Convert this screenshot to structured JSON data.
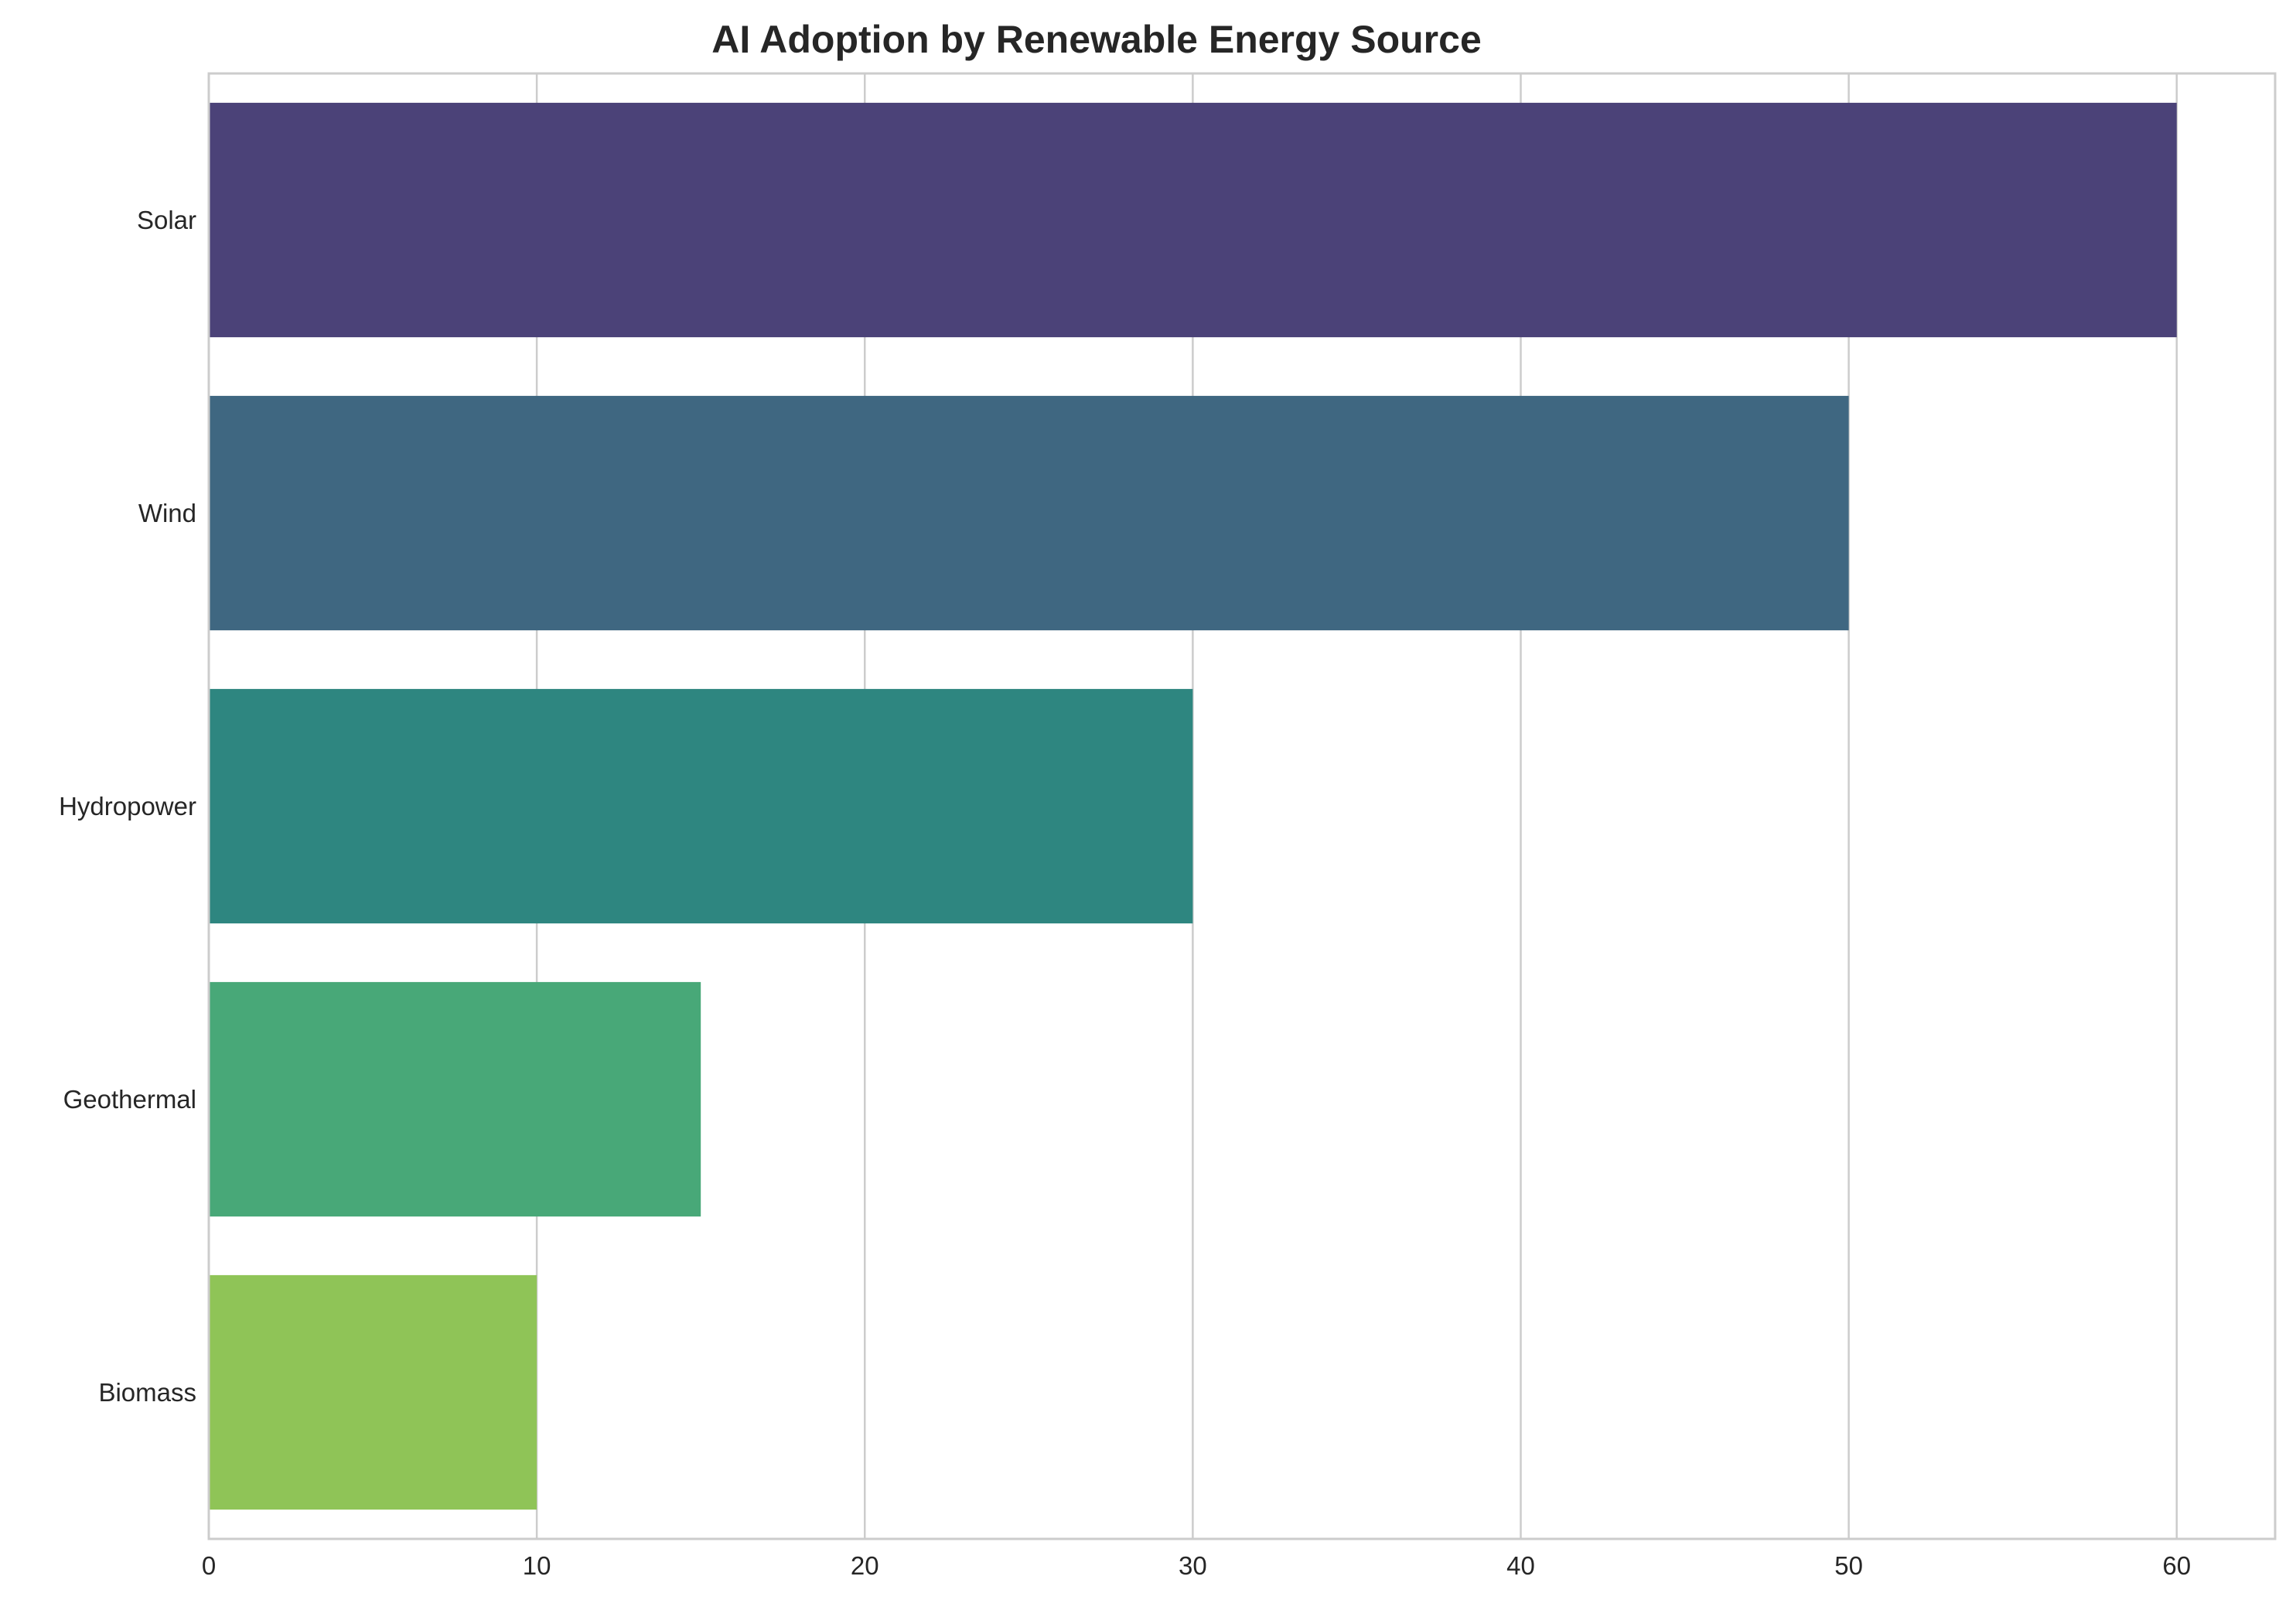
{
  "chart_data": {
    "type": "bar",
    "orientation": "horizontal",
    "title": "AI Adoption by Renewable Energy Source",
    "xlabel": "",
    "ylabel": "",
    "categories": [
      "Solar",
      "Wind",
      "Hydropower",
      "Geothermal",
      "Biomass"
    ],
    "values": [
      60,
      50,
      30,
      15,
      10
    ],
    "colors": [
      "#4b4278",
      "#3f6781",
      "#2e8680",
      "#48a878",
      "#8fc457"
    ],
    "xlim": [
      0,
      63
    ],
    "xticks": [
      0,
      10,
      20,
      30,
      40,
      50,
      60
    ],
    "grid": true,
    "legend": "none"
  }
}
